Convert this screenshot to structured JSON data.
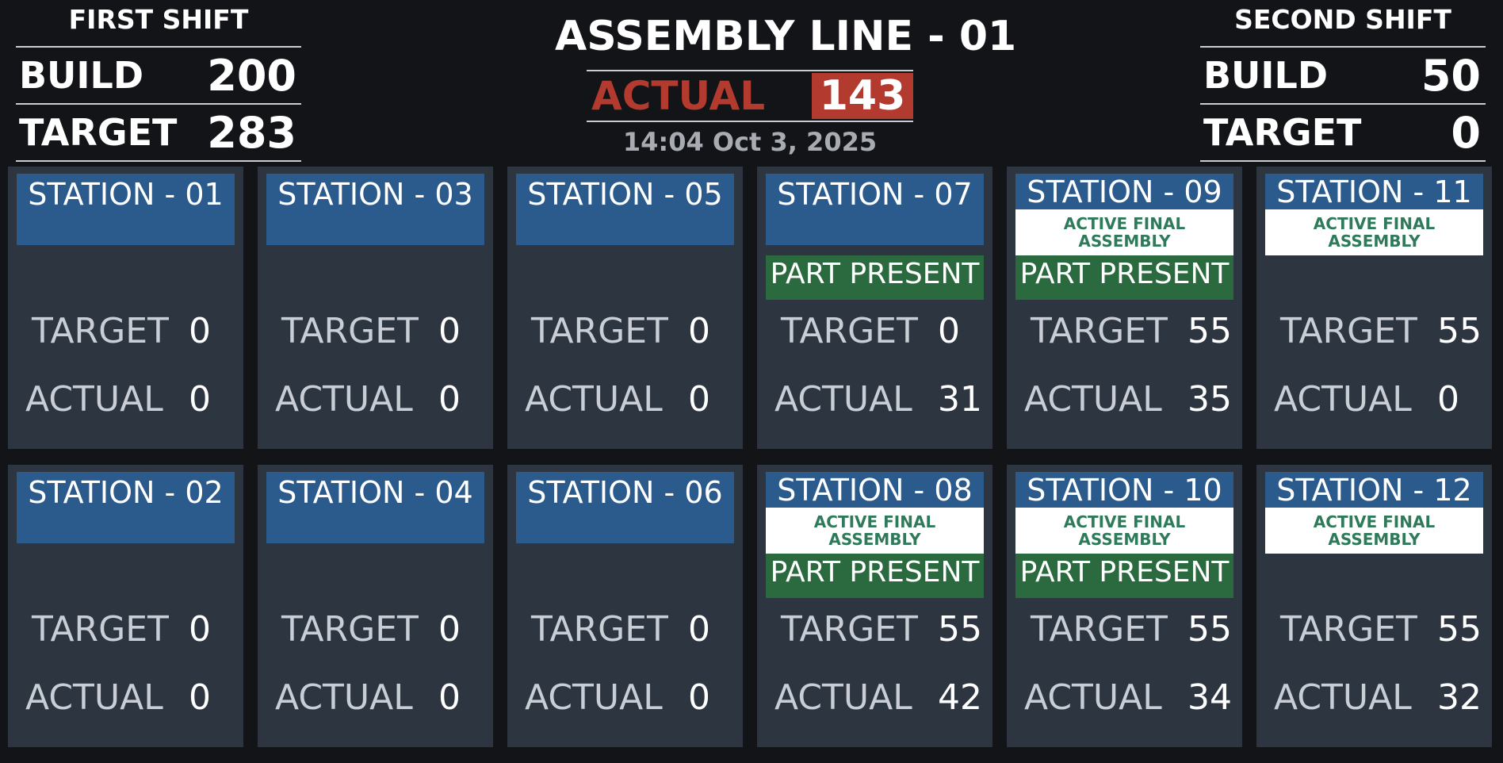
{
  "first_shift": {
    "title": "FIRST SHIFT",
    "build_label": "BUILD",
    "build_value": "200",
    "target_label": "TARGET",
    "target_value": "283"
  },
  "second_shift": {
    "title": "SECOND SHIFT",
    "build_label": "BUILD",
    "build_value": "50",
    "target_label": "TARGET",
    "target_value": "0"
  },
  "line": {
    "title": "ASSEMBLY LINE - 01",
    "actual_label": "ACTUAL",
    "actual_value": "143",
    "datetime": "14:04 Oct 3, 2025"
  },
  "colors": {
    "background": "#121417",
    "station_bg": "#2c3540",
    "header_blue": "#2b5a8c",
    "part_green": "#2a6a3e",
    "actual_red": "#b33a2e",
    "active_text": "#2f7a5a"
  },
  "stations": [
    {
      "name": "STATION - 01",
      "active": "",
      "part": "",
      "target_label": "TARGET",
      "target": "0",
      "actual_label": "ACTUAL",
      "actual": "0"
    },
    {
      "name": "STATION - 03",
      "active": "",
      "part": "",
      "target_label": "TARGET",
      "target": "0",
      "actual_label": "ACTUAL",
      "actual": "0"
    },
    {
      "name": "STATION - 05",
      "active": "",
      "part": "",
      "target_label": "TARGET",
      "target": "0",
      "actual_label": "ACTUAL",
      "actual": "0"
    },
    {
      "name": "STATION - 07",
      "active": "",
      "part": "PART PRESENT",
      "target_label": "TARGET",
      "target": "0",
      "actual_label": "ACTUAL",
      "actual": "31"
    },
    {
      "name": "STATION - 09",
      "active": "ACTIVE FINAL ASSEMBLY",
      "part": "PART PRESENT",
      "target_label": "TARGET",
      "target": "55",
      "actual_label": "ACTUAL",
      "actual": "35"
    },
    {
      "name": "STATION - 11",
      "active": "ACTIVE FINAL ASSEMBLY",
      "part": "",
      "target_label": "TARGET",
      "target": "55",
      "actual_label": "ACTUAL",
      "actual": "0"
    },
    {
      "name": "STATION - 02",
      "active": "",
      "part": "",
      "target_label": "TARGET",
      "target": "0",
      "actual_label": "ACTUAL",
      "actual": "0"
    },
    {
      "name": "STATION - 04",
      "active": "",
      "part": "",
      "target_label": "TARGET",
      "target": "0",
      "actual_label": "ACTUAL",
      "actual": "0"
    },
    {
      "name": "STATION - 06",
      "active": "",
      "part": "",
      "target_label": "TARGET",
      "target": "0",
      "actual_label": "ACTUAL",
      "actual": "0"
    },
    {
      "name": "STATION - 08",
      "active": "ACTIVE FINAL ASSEMBLY",
      "part": "PART PRESENT",
      "target_label": "TARGET",
      "target": "55",
      "actual_label": "ACTUAL",
      "actual": "42"
    },
    {
      "name": "STATION - 10",
      "active": "ACTIVE FINAL ASSEMBLY",
      "part": "PART PRESENT",
      "target_label": "TARGET",
      "target": "55",
      "actual_label": "ACTUAL",
      "actual": "34"
    },
    {
      "name": "STATION - 12",
      "active": "ACTIVE FINAL ASSEMBLY",
      "part": "",
      "target_label": "TARGET",
      "target": "55",
      "actual_label": "ACTUAL",
      "actual": "32"
    }
  ]
}
